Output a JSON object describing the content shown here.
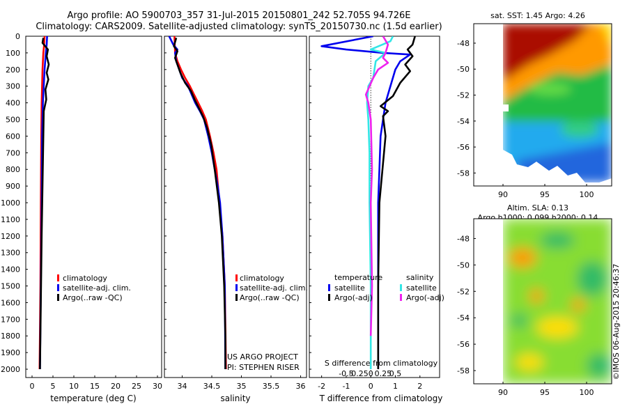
{
  "title_line1": "Argo profile: AO 5900703_357 31-Jul-2015 20150801_242 52.705S 94.726E",
  "title_line2": "Climatology: CARS2009. Satellite-adjusted climatology: synTS_20150730.nc (1.5d earlier)",
  "credit": "©IMOS 06-Aug-2015 20:46:37",
  "project_line1": "US ARGO PROJECT",
  "project_line2": "PI: STEPHEN RISER",
  "colors": {
    "climatology": "#ff0000",
    "satellite": "#0000ee",
    "argo": "#000000",
    "sat_salinity": "#33e6e6",
    "argo_salinity": "#ee22ee"
  },
  "chart_data": [
    {
      "type": "line",
      "id": "temperature",
      "xlabel": "temperature (deg C)",
      "xlim": [
        -1.5,
        31
      ],
      "xticks": [
        0,
        5,
        10,
        15,
        20,
        25,
        30
      ],
      "ylim": [
        0,
        2050
      ],
      "yticks": [
        0,
        100,
        200,
        300,
        400,
        500,
        600,
        700,
        800,
        900,
        1000,
        1100,
        1200,
        1300,
        1400,
        1500,
        1600,
        1700,
        1800,
        1900,
        2000
      ],
      "legend": [
        "climatology",
        "satellite-adj. clim.",
        "Argo(..raw -QC)"
      ],
      "series": [
        {
          "name": "climatology",
          "color": "#ff0000",
          "points": [
            [
              3.0,
              0
            ],
            [
              2.9,
              50
            ],
            [
              2.7,
              100
            ],
            [
              2.5,
              200
            ],
            [
              2.4,
              300
            ],
            [
              2.3,
              400
            ],
            [
              2.2,
              600
            ],
            [
              2.1,
              1000
            ],
            [
              2.0,
              1500
            ],
            [
              1.8,
              2000
            ]
          ]
        },
        {
          "name": "satellite-adj. clim.",
          "color": "#0000ee",
          "points": [
            [
              3.6,
              0
            ],
            [
              3.5,
              50
            ],
            [
              3.3,
              100
            ],
            [
              3.0,
              200
            ],
            [
              2.8,
              300
            ],
            [
              2.6,
              400
            ],
            [
              2.4,
              600
            ],
            [
              2.3,
              1000
            ],
            [
              2.1,
              1500
            ],
            [
              1.9,
              2000
            ]
          ]
        },
        {
          "name": "Argo(..raw -QC)",
          "color": "#000000",
          "points": [
            [
              2.7,
              10
            ],
            [
              2.5,
              40
            ],
            [
              3.8,
              80
            ],
            [
              3.5,
              120
            ],
            [
              4.0,
              170
            ],
            [
              3.5,
              220
            ],
            [
              3.9,
              260
            ],
            [
              3.2,
              320
            ],
            [
              3.4,
              380
            ],
            [
              2.8,
              450
            ],
            [
              2.7,
              600
            ],
            [
              2.5,
              900
            ],
            [
              2.3,
              1200
            ],
            [
              2.1,
              1600
            ],
            [
              1.9,
              2000
            ]
          ]
        }
      ]
    },
    {
      "type": "line",
      "id": "salinity",
      "xlabel": "salinity",
      "xlim": [
        33.7,
        36.1
      ],
      "xticks": [
        34,
        34.5,
        35,
        35.5,
        36
      ],
      "ylim": [
        0,
        2050
      ],
      "legend": [
        "climatology",
        "satellite-adj. clim.",
        "Argo(..raw -QC)"
      ],
      "series": [
        {
          "name": "climatology",
          "color": "#ff0000",
          "points": [
            [
              33.87,
              0
            ],
            [
              33.88,
              100
            ],
            [
              33.92,
              150
            ],
            [
              33.98,
              200
            ],
            [
              34.05,
              250
            ],
            [
              34.13,
              300
            ],
            [
              34.2,
              350
            ],
            [
              34.27,
              400
            ],
            [
              34.34,
              450
            ],
            [
              34.4,
              500
            ],
            [
              34.47,
              600
            ],
            [
              34.53,
              700
            ],
            [
              34.58,
              800
            ],
            [
              34.63,
              1000
            ],
            [
              34.68,
              1200
            ],
            [
              34.72,
              1500
            ],
            [
              34.74,
              2000
            ]
          ]
        },
        {
          "name": "satellite-adj. clim.",
          "color": "#0000ee",
          "points": [
            [
              33.78,
              0
            ],
            [
              33.85,
              50
            ],
            [
              33.92,
              80
            ],
            [
              33.88,
              100
            ],
            [
              33.9,
              150
            ],
            [
              33.95,
              200
            ],
            [
              34.0,
              250
            ],
            [
              34.1,
              300
            ],
            [
              34.16,
              350
            ],
            [
              34.22,
              400
            ],
            [
              34.3,
              450
            ],
            [
              34.37,
              500
            ],
            [
              34.44,
              600
            ],
            [
              34.5,
              700
            ],
            [
              34.55,
              800
            ],
            [
              34.6,
              900
            ],
            [
              34.64,
              1000
            ],
            [
              34.68,
              1200
            ],
            [
              34.72,
              1500
            ],
            [
              34.73,
              2000
            ]
          ]
        },
        {
          "name": "Argo(..raw -QC)",
          "color": "#000000",
          "points": [
            [
              33.9,
              10
            ],
            [
              33.86,
              60
            ],
            [
              33.92,
              90
            ],
            [
              33.88,
              130
            ],
            [
              33.93,
              180
            ],
            [
              33.97,
              220
            ],
            [
              34.05,
              280
            ],
            [
              34.15,
              330
            ],
            [
              34.21,
              380
            ],
            [
              34.28,
              430
            ],
            [
              34.35,
              480
            ],
            [
              34.42,
              550
            ],
            [
              34.49,
              650
            ],
            [
              34.55,
              800
            ],
            [
              34.62,
              1000
            ],
            [
              34.67,
              1200
            ],
            [
              34.71,
              1500
            ],
            [
              34.73,
              1800
            ],
            [
              34.73,
              2000
            ]
          ]
        }
      ]
    },
    {
      "type": "line",
      "id": "difference",
      "xlabel": "T difference from climatology",
      "xlabel_top": "S difference from climatology",
      "xlim": [
        -2.5,
        2.8
      ],
      "xticks": [
        -2,
        -1,
        0,
        1,
        2
      ],
      "xticks_top": [
        "-0.5",
        "-0.25",
        "0",
        "0.25",
        "0.5"
      ],
      "ylim": [
        0,
        2050
      ],
      "legend_temperature": {
        "title": "temperature",
        "items": [
          "satellite",
          "Argo(-adj)"
        ]
      },
      "legend_salinity": {
        "title": "salinity",
        "items": [
          "satellite",
          "Argo(-adj)"
        ]
      },
      "series": [
        {
          "name": "temperature satellite",
          "color": "#0000ee",
          "points": [
            [
              0.1,
              0
            ],
            [
              -2.0,
              60
            ],
            [
              -1.0,
              80
            ],
            [
              0.5,
              100
            ],
            [
              1.6,
              110
            ],
            [
              1.2,
              150
            ],
            [
              1.0,
              200
            ],
            [
              0.8,
              300
            ],
            [
              0.6,
              400
            ],
            [
              0.4,
              600
            ],
            [
              0.35,
              800
            ],
            [
              0.3,
              1000
            ],
            [
              0.3,
              1500
            ],
            [
              0.3,
              2000
            ]
          ]
        },
        {
          "name": "temperature Argo(-adj)",
          "color": "#000000",
          "points": [
            [
              1.8,
              0
            ],
            [
              1.7,
              50
            ],
            [
              1.5,
              80
            ],
            [
              1.7,
              120
            ],
            [
              1.4,
              170
            ],
            [
              1.6,
              210
            ],
            [
              1.2,
              280
            ],
            [
              0.9,
              360
            ],
            [
              0.4,
              420
            ],
            [
              0.7,
              450
            ],
            [
              0.5,
              480
            ],
            [
              0.6,
              600
            ],
            [
              0.35,
              1000
            ],
            [
              0.3,
              1500
            ],
            [
              0.3,
              2000
            ]
          ]
        },
        {
          "name": "salinity satellite",
          "color": "#33e6e6",
          "points": [
            [
              0.9,
              0
            ],
            [
              0.8,
              30
            ],
            [
              0.0,
              80
            ],
            [
              0.6,
              100
            ],
            [
              0.2,
              150
            ],
            [
              0.1,
              250
            ],
            [
              -0.1,
              300
            ],
            [
              -0.15,
              400
            ],
            [
              -0.1,
              500
            ],
            [
              -0.05,
              700
            ],
            [
              -0.05,
              1000
            ],
            [
              0.0,
              1500
            ],
            [
              0.0,
              2000
            ]
          ]
        },
        {
          "name": "salinity Argo(-adj)",
          "color": "#ee22ee",
          "points": [
            [
              0.5,
              0
            ],
            [
              0.7,
              50
            ],
            [
              0.6,
              100
            ],
            [
              0.5,
              130
            ],
            [
              0.7,
              160
            ],
            [
              0.3,
              200
            ],
            [
              0.1,
              250
            ],
            [
              -0.2,
              350
            ],
            [
              -0.1,
              400
            ],
            [
              0.0,
              500
            ],
            [
              0.05,
              800
            ],
            [
              0.0,
              1000
            ],
            [
              0.05,
              1500
            ],
            [
              0.0,
              1800
            ]
          ]
        }
      ]
    },
    {
      "type": "heatmap",
      "id": "sst-map",
      "title": "sat. SST: 1.45 Argo: 4.26",
      "xticks": [
        90,
        95,
        100
      ],
      "yticks": [
        -48,
        -50,
        -52,
        -54,
        -56,
        -58
      ],
      "xlim": [
        86.5,
        103
      ],
      "ylim": [
        -59,
        -46.5
      ]
    },
    {
      "type": "heatmap",
      "id": "sla-map",
      "title_line1": "Altim. SLA: 0.13",
      "title_line2": "Argo h1000: 0.099 h2000: 0.14",
      "xticks": [
        90,
        95,
        100
      ],
      "yticks": [
        -48,
        -50,
        -52,
        -54,
        -56,
        -58
      ],
      "xlim": [
        86.5,
        103
      ],
      "ylim": [
        -59,
        -46.5
      ]
    }
  ]
}
